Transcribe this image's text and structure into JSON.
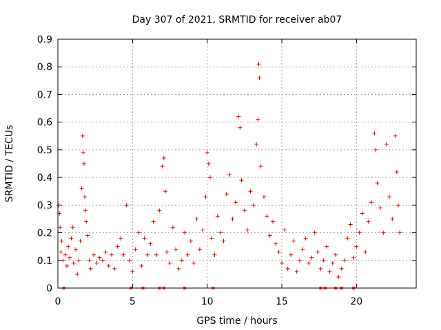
{
  "chart_data": {
    "type": "scatter",
    "title": "Day 307 of 2021, SRMTID for receiver ab07",
    "xlabel": "GPS time / hours",
    "ylabel": "SRMTID / TECUs",
    "xlim": [
      0,
      24
    ],
    "ylim": [
      0,
      0.9
    ],
    "x_ticks": [
      "0",
      "5",
      "10",
      "15",
      "20"
    ],
    "y_ticks": [
      "0",
      "0.1",
      "0.2",
      "0.3",
      "0.4",
      "0.5",
      "0.6",
      "0.7",
      "0.8",
      "0.9"
    ],
    "grid": true,
    "marker": "+",
    "color": "#dd0000",
    "series": [
      {
        "name": "SRMTID",
        "points": [
          [
            0.05,
            0.3
          ],
          [
            0.1,
            0.27
          ],
          [
            0.15,
            0.22
          ],
          [
            0.2,
            0.13
          ],
          [
            0.25,
            0.17
          ],
          [
            0.35,
            0.1
          ],
          [
            0.5,
            0.12
          ],
          [
            0.6,
            0.08
          ],
          [
            0.7,
            0.15
          ],
          [
            0.8,
            0.11
          ],
          [
            0.9,
            0.18
          ],
          [
            1.0,
            0.22
          ],
          [
            1.05,
            0.09
          ],
          [
            1.2,
            0.14
          ],
          [
            1.3,
            0.05
          ],
          [
            1.4,
            0.1
          ],
          [
            1.5,
            0.17
          ],
          [
            1.6,
            0.36
          ],
          [
            1.65,
            0.55
          ],
          [
            1.7,
            0.49
          ],
          [
            1.75,
            0.45
          ],
          [
            1.8,
            0.33
          ],
          [
            1.85,
            0.28
          ],
          [
            1.9,
            0.24
          ],
          [
            2.0,
            0.19
          ],
          [
            2.1,
            0.1
          ],
          [
            2.2,
            0.07
          ],
          [
            2.4,
            0.12
          ],
          [
            2.6,
            0.09
          ],
          [
            2.8,
            0.11
          ],
          [
            3.0,
            0.1
          ],
          [
            3.2,
            0.13
          ],
          [
            3.4,
            0.08
          ],
          [
            3.6,
            0.12
          ],
          [
            3.8,
            0.07
          ],
          [
            4.0,
            0.15
          ],
          [
            4.2,
            0.18
          ],
          [
            4.4,
            0.12
          ],
          [
            4.6,
            0.3
          ],
          [
            4.8,
            0.1
          ],
          [
            5.0,
            0.06
          ],
          [
            5.2,
            0.14
          ],
          [
            5.4,
            0.2
          ],
          [
            5.6,
            0.08
          ],
          [
            5.8,
            0.18
          ],
          [
            6.0,
            0.12
          ],
          [
            6.2,
            0.16
          ],
          [
            6.4,
            0.24
          ],
          [
            6.6,
            0.12
          ],
          [
            6.8,
            0.28
          ],
          [
            7.0,
            0.44
          ],
          [
            7.1,
            0.47
          ],
          [
            7.2,
            0.35
          ],
          [
            7.3,
            0.13
          ],
          [
            7.5,
            0.09
          ],
          [
            7.7,
            0.22
          ],
          [
            7.9,
            0.14
          ],
          [
            8.1,
            0.07
          ],
          [
            8.3,
            0.1
          ],
          [
            8.5,
            0.2
          ],
          [
            8.7,
            0.12
          ],
          [
            8.9,
            0.17
          ],
          [
            9.1,
            0.09
          ],
          [
            9.3,
            0.25
          ],
          [
            9.5,
            0.14
          ],
          [
            9.7,
            0.21
          ],
          [
            9.9,
            0.33
          ],
          [
            10.0,
            0.49
          ],
          [
            10.1,
            0.45
          ],
          [
            10.2,
            0.4
          ],
          [
            10.3,
            0.18
          ],
          [
            10.5,
            0.12
          ],
          [
            10.7,
            0.26
          ],
          [
            10.9,
            0.2
          ],
          [
            11.1,
            0.17
          ],
          [
            11.3,
            0.34
          ],
          [
            11.5,
            0.41
          ],
          [
            11.7,
            0.25
          ],
          [
            11.9,
            0.31
          ],
          [
            12.1,
            0.62
          ],
          [
            12.2,
            0.58
          ],
          [
            12.3,
            0.39
          ],
          [
            12.5,
            0.28
          ],
          [
            12.7,
            0.21
          ],
          [
            12.9,
            0.35
          ],
          [
            13.1,
            0.3
          ],
          [
            13.3,
            0.52
          ],
          [
            13.4,
            0.61
          ],
          [
            13.45,
            0.81
          ],
          [
            13.5,
            0.76
          ],
          [
            13.6,
            0.44
          ],
          [
            13.8,
            0.33
          ],
          [
            14.0,
            0.26
          ],
          [
            14.2,
            0.19
          ],
          [
            14.4,
            0.24
          ],
          [
            14.6,
            0.16
          ],
          [
            14.8,
            0.13
          ],
          [
            15.0,
            0.09
          ],
          [
            15.2,
            0.21
          ],
          [
            15.4,
            0.07
          ],
          [
            15.6,
            0.12
          ],
          [
            15.8,
            0.17
          ],
          [
            16.0,
            0.06
          ],
          [
            16.2,
            0.1
          ],
          [
            16.4,
            0.14
          ],
          [
            16.6,
            0.18
          ],
          [
            16.8,
            0.09
          ],
          [
            17.0,
            0.11
          ],
          [
            17.2,
            0.2
          ],
          [
            17.4,
            0.13
          ],
          [
            17.6,
            0.07
          ],
          [
            17.8,
            0.1
          ],
          [
            18.0,
            0.15
          ],
          [
            18.2,
            0.06
          ],
          [
            18.4,
            0.09
          ],
          [
            18.6,
            0.12
          ],
          [
            18.8,
            0.04
          ],
          [
            19.0,
            0.07
          ],
          [
            19.2,
            0.1
          ],
          [
            19.4,
            0.18
          ],
          [
            19.6,
            0.23
          ],
          [
            19.8,
            0.11
          ],
          [
            20.0,
            0.15
          ],
          [
            20.2,
            0.2
          ],
          [
            20.4,
            0.27
          ],
          [
            20.6,
            0.13
          ],
          [
            20.8,
            0.24
          ],
          [
            21.0,
            0.31
          ],
          [
            21.2,
            0.56
          ],
          [
            21.3,
            0.5
          ],
          [
            21.4,
            0.38
          ],
          [
            21.6,
            0.29
          ],
          [
            21.8,
            0.2
          ],
          [
            22.0,
            0.52
          ],
          [
            22.2,
            0.33
          ],
          [
            22.4,
            0.25
          ],
          [
            22.6,
            0.55
          ],
          [
            22.7,
            0.42
          ],
          [
            22.8,
            0.3
          ],
          [
            22.9,
            0.2
          ]
        ]
      }
    ],
    "axis_markers_x": [
      0.4,
      4.9,
      5.7,
      6.8,
      7.1,
      8.5,
      10.4,
      17.6,
      17.9,
      18.6,
      19.0,
      19.8
    ]
  }
}
